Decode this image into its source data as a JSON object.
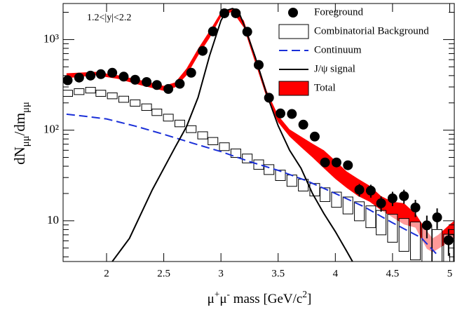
{
  "chart_data": {
    "type": "line",
    "annotation": "1.2<|y|<2.2",
    "xlabel": [
      "μ",
      "+",
      "μ",
      "-",
      " mass [GeV/c",
      "2",
      "]"
    ],
    "ylabel": [
      "dN",
      "μμ",
      "/dm",
      "μμ"
    ],
    "xlim": [
      1.62,
      5.04
    ],
    "xticks": [
      2,
      2.5,
      3,
      3.5,
      4,
      4.5,
      5
    ],
    "ylim": [
      3.55,
      2500
    ],
    "ylog": true,
    "yticks": [
      10,
      {
        "value": 100,
        "label": "10²"
      },
      {
        "value": 1000,
        "label": "10³"
      }
    ],
    "yminorticks": [
      4,
      5,
      6,
      7,
      8,
      9,
      20,
      30,
      40,
      50,
      60,
      70,
      80,
      90,
      200,
      300,
      400,
      500,
      600,
      700,
      800,
      900,
      2000
    ],
    "legend": "top-right",
    "series": [
      {
        "name": "Foreground",
        "type": "points",
        "color": "#000000",
        "x": [
          1.66,
          1.76,
          1.86,
          1.95,
          2.05,
          2.15,
          2.25,
          2.35,
          2.44,
          2.54,
          2.64,
          2.74,
          2.84,
          2.93,
          3.03,
          3.13,
          3.23,
          3.33,
          3.42,
          3.52,
          3.62,
          3.72,
          3.82,
          3.91,
          4.01,
          4.11,
          4.21,
          4.31,
          4.4,
          4.5,
          4.6,
          4.7,
          4.8,
          4.89,
          4.99
        ],
        "values": [
          355,
          380,
          400,
          415,
          430,
          390,
          360,
          340,
          315,
          285,
          325,
          430,
          750,
          1230,
          1950,
          1950,
          1220,
          525,
          228,
          153,
          151,
          115,
          85,
          44,
          44,
          41,
          22,
          21.5,
          15.6,
          17.7,
          18.7,
          14,
          8.9,
          10.9,
          6.1
        ],
        "errors": [
          10,
          10,
          10,
          10,
          11,
          10,
          10,
          9,
          9,
          9,
          9,
          11,
          15,
          20,
          25,
          25,
          20,
          13,
          8,
          7,
          7,
          6,
          5,
          4.5,
          4.5,
          4.5,
          3.5,
          3.5,
          3,
          3.2,
          3.3,
          3,
          2.5,
          2.8,
          2
        ]
      },
      {
        "name": "Combinatorial Background",
        "type": "boxes",
        "color": "#000000",
        "x": [
          1.66,
          1.76,
          1.86,
          1.95,
          2.05,
          2.15,
          2.25,
          2.35,
          2.44,
          2.54,
          2.64,
          2.74,
          2.84,
          2.93,
          3.03,
          3.13,
          3.23,
          3.33,
          3.42,
          3.52,
          3.62,
          3.72,
          3.82,
          3.91,
          4.01,
          4.11,
          4.21,
          4.31,
          4.4,
          4.5,
          4.6,
          4.7,
          4.8,
          4.89,
          4.99
        ],
        "values": [
          256,
          267,
          277,
          256,
          240,
          220,
          200,
          180,
          158,
          138,
          119,
          103,
          88,
          76,
          66,
          56,
          49,
          42,
          37,
          32,
          28,
          25,
          22.3,
          19.7,
          17.4,
          15.1,
          13.1,
          11.5,
          10,
          8.8,
          7.6,
          6.7,
          6,
          5.2,
          4.5
        ],
        "errors": [
          20,
          20,
          20,
          20,
          18,
          17,
          16,
          15,
          13,
          12,
          10,
          9,
          8,
          7,
          6.5,
          6,
          5.5,
          5,
          4.6,
          4.2,
          4,
          3.7,
          3.5,
          3.4,
          3.3,
          3.2,
          3.1,
          3.1,
          3,
          3,
          3,
          3,
          3,
          2.8,
          2.6
        ]
      },
      {
        "name": "Continuum",
        "type": "line",
        "dashed": true,
        "color": "#1a2fd8",
        "x": [
          1.65,
          1.8,
          2,
          2.25,
          2.5,
          2.75,
          3,
          3.25,
          3.5,
          3.75,
          4,
          4.25,
          4.5,
          4.75,
          4.9
        ],
        "values": [
          150,
          143,
          133,
          111,
          90,
          72,
          58,
          45,
          36,
          27.6,
          20,
          14.3,
          9.5,
          6.5,
          4.1
        ]
      },
      {
        "name": "J/ψ signal",
        "type": "line",
        "dashed": false,
        "color": "#000000",
        "x": [
          2.05,
          2.2,
          2.4,
          2.6,
          2.7,
          2.8,
          2.9,
          3.0,
          3.05,
          3.1,
          3.15,
          3.2,
          3.3,
          3.4,
          3.5,
          3.6,
          3.7,
          3.8,
          3.9,
          4.0,
          4.1,
          4.15
        ],
        "values": [
          3.55,
          6.4,
          22,
          65,
          110,
          230,
          660,
          1620,
          2100,
          2200,
          2100,
          1470,
          640,
          250,
          112,
          60,
          38,
          20,
          12,
          7.6,
          4.6,
          3.55
        ]
      },
      {
        "name": "Total",
        "type": "band",
        "color": "#ff0000",
        "x": [
          1.65,
          1.9,
          2.1,
          2.3,
          2.5,
          2.6,
          2.7,
          2.8,
          2.9,
          3.0,
          3.1,
          3.2,
          3.3,
          3.4,
          3.5,
          3.6,
          3.7,
          3.8,
          3.9,
          4.0,
          4.1,
          4.2,
          4.3,
          4.4,
          4.5,
          4.6,
          4.7,
          4.8,
          4.85,
          4.9,
          5.0,
          5.04
        ],
        "high": [
          425,
          440,
          403,
          355,
          308,
          337,
          481,
          793,
          1239,
          2005,
          2233,
          1620,
          664,
          272,
          145,
          102,
          85,
          71,
          60,
          46,
          35,
          29,
          24.4,
          18.7,
          16.2,
          15.6,
          12.0,
          7.7,
          6.4,
          7.0,
          9.1,
          10
        ],
        "low": [
          375,
          403,
          368,
          313,
          272,
          297,
          403,
          664,
          1037,
          1770,
          2042,
          1356,
          555,
          227,
          122,
          85,
          65,
          50,
          38,
          29,
          23,
          18.7,
          16.2,
          13.1,
          10.9,
          9.1,
          8.4,
          4.9,
          4.5,
          4.9,
          5.9,
          6.4
        ]
      }
    ]
  }
}
